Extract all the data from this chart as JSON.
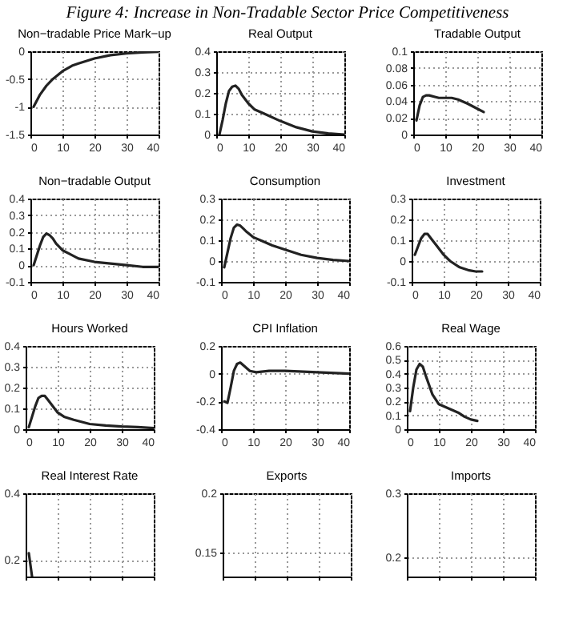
{
  "chart_data": [
    {
      "type": "other",
      "title": "Figure 4: Increase in Non-Tradable Sector Price Competitiveness"
    },
    {
      "type": "line",
      "title": "Non−tradable Price Mark−up",
      "color": "#222222",
      "grid": true,
      "xlim": [
        0,
        40
      ],
      "xticks": [
        0,
        10,
        20,
        30,
        40
      ],
      "ylim": [
        -1.5,
        0
      ],
      "yticks": [
        -1.5,
        -1,
        -0.5,
        0
      ],
      "x": [
        1,
        3,
        5,
        7,
        10,
        13,
        15,
        20,
        25,
        30,
        35,
        40
      ],
      "values": [
        -1.0,
        -0.78,
        -0.62,
        -0.5,
        -0.36,
        -0.26,
        -0.22,
        -0.13,
        -0.07,
        -0.04,
        -0.02,
        -0.01
      ]
    },
    {
      "type": "line",
      "title": "Real Output",
      "color": "#222222",
      "grid": true,
      "xlim": [
        0,
        40
      ],
      "xticks": [
        0,
        10,
        20,
        30,
        40
      ],
      "ylim": [
        0,
        0.4
      ],
      "yticks": [
        0,
        0.1,
        0.2,
        0.3,
        0.4
      ],
      "x": [
        1,
        2,
        3,
        4,
        5,
        6,
        7,
        8,
        10,
        12,
        15,
        20,
        25,
        30,
        35,
        40
      ],
      "values": [
        0.0,
        0.07,
        0.15,
        0.21,
        0.23,
        0.235,
        0.22,
        0.19,
        0.15,
        0.12,
        0.1,
        0.065,
        0.035,
        0.015,
        0.005,
        0.0
      ]
    },
    {
      "type": "line",
      "title": "Tradable Output",
      "color": "#222222",
      "grid": true,
      "xlim": [
        0,
        40
      ],
      "xticks": [
        0,
        10,
        20,
        30,
        40
      ],
      "ylim": [
        0,
        0.1
      ],
      "yticks": [
        0,
        0.02,
        0.04,
        0.06,
        0.08,
        0.1
      ],
      "x": [
        1,
        2,
        3,
        4,
        5,
        7,
        8,
        10,
        12,
        14,
        17,
        20,
        22
      ],
      "values": [
        0.017,
        0.035,
        0.045,
        0.047,
        0.047,
        0.045,
        0.044,
        0.044,
        0.044,
        0.042,
        0.037,
        0.031,
        0.027
      ]
    },
    {
      "type": "line",
      "title": "Non−tradable Output",
      "color": "#222222",
      "grid": true,
      "xlim": [
        0,
        40
      ],
      "xticks": [
        0,
        10,
        20,
        30,
        40
      ],
      "ylim": [
        -0.1,
        0.4
      ],
      "yticks": [
        -0.1,
        0,
        0.1,
        0.2,
        0.3,
        0.4
      ],
      "x": [
        1,
        2,
        3,
        4,
        5,
        6,
        7,
        8,
        10,
        12,
        15,
        20,
        25,
        30,
        35,
        40
      ],
      "values": [
        0.0,
        0.06,
        0.12,
        0.17,
        0.19,
        0.18,
        0.16,
        0.13,
        0.09,
        0.07,
        0.04,
        0.02,
        0.01,
        0.0,
        -0.01,
        -0.01
      ]
    },
    {
      "type": "line",
      "title": "Consumption",
      "color": "#222222",
      "grid": true,
      "xlim": [
        0,
        40
      ],
      "xticks": [
        0,
        10,
        20,
        30,
        40
      ],
      "ylim": [
        -0.1,
        0.3
      ],
      "yticks": [
        -0.1,
        0,
        0.1,
        0.2,
        0.3
      ],
      "x": [
        1,
        2,
        3,
        4,
        5,
        6,
        7,
        8,
        10,
        13,
        16,
        20,
        25,
        30,
        35,
        40
      ],
      "values": [
        -0.03,
        0.04,
        0.11,
        0.16,
        0.175,
        0.17,
        0.155,
        0.14,
        0.115,
        0.095,
        0.075,
        0.055,
        0.03,
        0.015,
        0.005,
        0.0
      ]
    },
    {
      "type": "line",
      "title": "Investment",
      "color": "#222222",
      "grid": true,
      "xlim": [
        0,
        40
      ],
      "xticks": [
        0,
        10,
        20,
        30,
        40
      ],
      "ylim": [
        -0.1,
        0.3
      ],
      "yticks": [
        -0.1,
        0,
        0.1,
        0.2,
        0.3
      ],
      "x": [
        1,
        2,
        3,
        4,
        5,
        6,
        8,
        10,
        12,
        15,
        18,
        20,
        22
      ],
      "values": [
        0.03,
        0.07,
        0.11,
        0.13,
        0.13,
        0.11,
        0.07,
        0.03,
        0.0,
        -0.03,
        -0.045,
        -0.05,
        -0.05
      ]
    },
    {
      "type": "line",
      "title": "Hours Worked",
      "color": "#222222",
      "grid": true,
      "xlim": [
        0,
        40
      ],
      "xticks": [
        0,
        10,
        20,
        30,
        40
      ],
      "ylim": [
        0,
        0.4
      ],
      "yticks": [
        0,
        0.1,
        0.2,
        0.3,
        0.4
      ],
      "x": [
        1,
        2,
        3,
        4,
        5,
        6,
        7,
        8,
        10,
        12,
        15,
        20,
        25,
        30,
        35,
        40
      ],
      "values": [
        0.01,
        0.06,
        0.11,
        0.15,
        0.16,
        0.16,
        0.14,
        0.12,
        0.08,
        0.06,
        0.045,
        0.025,
        0.018,
        0.013,
        0.01,
        0.005
      ]
    },
    {
      "type": "line",
      "title": "CPI Inflation",
      "color": "#222222",
      "grid": true,
      "xlim": [
        0,
        40
      ],
      "xticks": [
        0,
        10,
        20,
        30,
        40
      ],
      "ylim": [
        -0.4,
        0.2
      ],
      "yticks": [
        -0.4,
        -0.2,
        0,
        0.2
      ],
      "x": [
        1,
        2,
        3,
        4,
        5,
        6,
        7,
        9,
        11,
        15,
        20,
        30,
        40
      ],
      "values": [
        -0.2,
        -0.21,
        -0.1,
        0.02,
        0.07,
        0.08,
        0.06,
        0.02,
        0.01,
        0.02,
        0.02,
        0.01,
        0.0
      ]
    },
    {
      "type": "line",
      "title": "Real Wage",
      "color": "#222222",
      "grid": true,
      "xlim": [
        0,
        40
      ],
      "xticks": [
        0,
        10,
        20,
        30,
        40
      ],
      "ylim": [
        0,
        0.6
      ],
      "yticks": [
        0,
        0.1,
        0.2,
        0.3,
        0.4,
        0.5,
        0.6
      ],
      "x": [
        1,
        2,
        3,
        4,
        5,
        6,
        8,
        10,
        13,
        16,
        18,
        20,
        22
      ],
      "values": [
        0.13,
        0.3,
        0.43,
        0.47,
        0.45,
        0.38,
        0.25,
        0.18,
        0.15,
        0.12,
        0.09,
        0.07,
        0.06
      ]
    },
    {
      "type": "line",
      "title": "Real Interest Rate",
      "color": "#222222",
      "grid": true,
      "tick_labels": "y",
      "xlim": [
        0,
        40
      ],
      "xticks": [
        0,
        10,
        20,
        30,
        40
      ],
      "ylim": [
        0.15,
        0.4
      ],
      "yticks": [
        0.2,
        0.4
      ],
      "x": [
        1,
        2
      ],
      "values": [
        0.22,
        0.15
      ]
    },
    {
      "type": "line",
      "title": "Exports",
      "color": "#222222",
      "grid": true,
      "tick_labels": "y",
      "xlim": [
        0,
        40
      ],
      "xticks": [
        0,
        10,
        20,
        30,
        40
      ],
      "ylim": [
        0.13,
        0.2
      ],
      "yticks": [
        0.15,
        0.2
      ]
    },
    {
      "type": "line",
      "title": "Imports",
      "color": "#222222",
      "grid": true,
      "tick_labels": "y",
      "xlim": [
        0,
        40
      ],
      "xticks": [
        0,
        10,
        20,
        30,
        40
      ],
      "ylim": [
        0.17,
        0.3
      ],
      "yticks": [
        0.2,
        0.3
      ]
    }
  ]
}
